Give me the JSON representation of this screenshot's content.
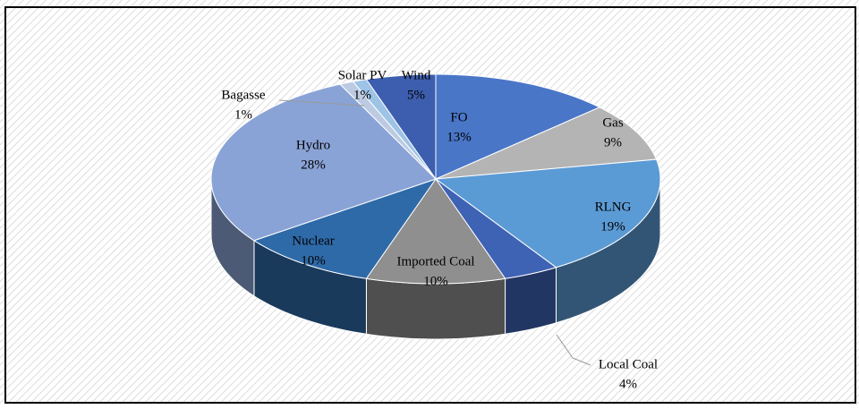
{
  "chart_data": {
    "type": "pie3d",
    "categories": [
      "FO",
      "Gas",
      "RLNG",
      "Local Coal",
      "Imported Coal",
      "Nuclear",
      "Hydro",
      "Bagasse",
      "Solar PV",
      "Wind"
    ],
    "values": [
      13,
      9,
      19,
      4,
      10,
      10,
      28,
      1,
      1,
      5
    ],
    "value_labels": [
      "13%",
      "9%",
      "19%",
      "4%",
      "10%",
      "10%",
      "28%",
      "1%",
      "1%",
      "5%"
    ],
    "colors": [
      "#4a76c8",
      "#b4b4b4",
      "#5b9bd5",
      "#3e62b4",
      "#8f8f8f",
      "#2f6aa8",
      "#8aa3d6",
      "#bccbe2",
      "#9dc3e6",
      "#3d5eae"
    ]
  }
}
